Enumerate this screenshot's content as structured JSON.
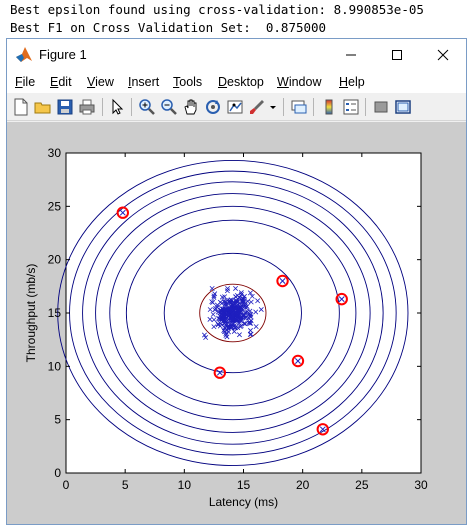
{
  "console": {
    "line1": "Best epsilon found using cross-validation: 8.990853e-05",
    "line2": "Best F1 on Cross Validation Set:  0.875000"
  },
  "window": {
    "title": "Figure 1",
    "menu": [
      "File",
      "Edit",
      "View",
      "Insert",
      "Tools",
      "Desktop",
      "Window",
      "Help"
    ],
    "toolbar_icons": [
      "new-figure-icon",
      "open-file-icon",
      "save-icon",
      "print-icon",
      "pointer-icon",
      "zoom-in-icon",
      "zoom-out-icon",
      "pan-icon",
      "rotate-3d-icon",
      "data-cursor-icon",
      "brush-icon",
      "link-icon",
      "insert-colorbar-icon",
      "insert-legend-icon",
      "hide-plot-tools-icon",
      "show-plot-tools-icon"
    ]
  },
  "chart_data": {
    "type": "scatter",
    "xlabel": "Latency (ms)",
    "ylabel": "Throughput (mb/s)",
    "xlim": [
      0,
      30
    ],
    "ylim": [
      0,
      30
    ],
    "xticks": [
      0,
      5,
      10,
      15,
      20,
      25,
      30
    ],
    "yticks": [
      0,
      5,
      10,
      15,
      20,
      25,
      30
    ],
    "grid": false,
    "colors": {
      "data": "#1f1fbf",
      "contour": "#00007f",
      "inner_contour": "#7f0000",
      "anomaly": "#ff0000"
    },
    "data_center": [
      14.1,
      15.0
    ],
    "contours": [
      {
        "rx": 2.8,
        "ry": 2.7
      },
      {
        "rx": 5.8,
        "ry": 5.6
      },
      {
        "rx": 9.0,
        "ry": 8.7
      },
      {
        "rx": 10.4,
        "ry": 10.0
      },
      {
        "rx": 11.6,
        "ry": 11.2
      },
      {
        "rx": 12.7,
        "ry": 12.3
      },
      {
        "rx": 13.8,
        "ry": 13.3
      },
      {
        "rx": 14.8,
        "ry": 14.3
      }
    ],
    "anomalies": [
      {
        "x": 4.8,
        "y": 24.4
      },
      {
        "x": 18.3,
        "y": 18.0
      },
      {
        "x": 23.3,
        "y": 16.3
      },
      {
        "x": 13.0,
        "y": 9.4
      },
      {
        "x": 19.6,
        "y": 10.5
      },
      {
        "x": 21.7,
        "y": 4.1
      }
    ]
  }
}
